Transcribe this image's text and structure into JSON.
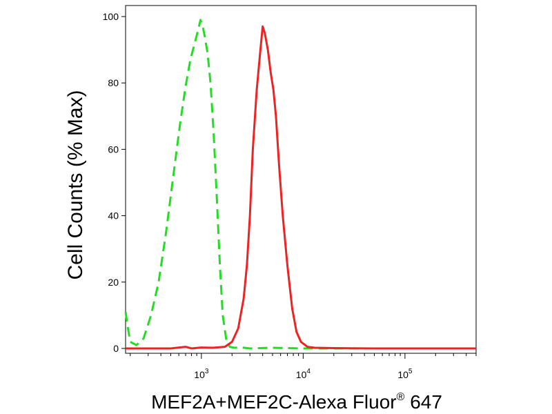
{
  "chart_data": {
    "type": "line",
    "xlabel": "MEF2A+MEF2C-Alexa Fluor",
    "xlabel_superscript": "®",
    "xlabel_suffix": " 647",
    "ylabel": "Cell Counts (% Max)",
    "x_scale": "log",
    "xlim": [
      180,
      500000
    ],
    "ylim": [
      0,
      105
    ],
    "y_ticks": [
      "0",
      "20",
      "40",
      "60",
      "80",
      "100"
    ],
    "y_tick_values": [
      0,
      20,
      40,
      60,
      80,
      100
    ],
    "x_ticks": [
      {
        "value": 1000,
        "base": "10",
        "exp": "3"
      },
      {
        "value": 10000,
        "base": "10",
        "exp": "4"
      },
      {
        "value": 100000,
        "base": "10",
        "exp": "5"
      }
    ],
    "grid": false,
    "legend": "none",
    "series": [
      {
        "color": "#22dd22",
        "style": "dashed",
        "x": [
          180,
          190,
          200,
          230,
          270,
          320,
          380,
          450,
          530,
          620,
          700,
          780,
          860,
          930,
          980,
          1030,
          1080,
          1150,
          1230,
          1320,
          1420,
          1520,
          1620,
          1750,
          1900,
          2100,
          2500,
          3000,
          5000,
          10000,
          50000,
          500000
        ],
        "y": [
          11,
          6,
          2,
          1,
          3,
          10,
          20,
          35,
          52,
          68,
          79,
          87,
          92,
          96,
          99,
          97,
          94,
          89,
          80,
          65,
          45,
          25,
          10,
          3,
          0.5,
          0.2,
          0.3,
          0,
          0.2,
          0,
          0,
          0
        ]
      },
      {
        "color": "#ee2222",
        "style": "solid",
        "x": [
          180,
          500,
          700,
          800,
          1000,
          1300,
          1700,
          2000,
          2300,
          2600,
          2800,
          3000,
          3200,
          3500,
          3800,
          4000,
          4200,
          4500,
          4800,
          5100,
          5400,
          5800,
          6300,
          7000,
          7800,
          8600,
          9500,
          11000,
          13000,
          20000,
          50000,
          500000
        ],
        "y": [
          0,
          0,
          0.5,
          0,
          0.3,
          0.2,
          0.5,
          2,
          6,
          15,
          25,
          40,
          60,
          78,
          90,
          97,
          95,
          90,
          83,
          78,
          70,
          55,
          40,
          25,
          12,
          5,
          2,
          0.5,
          0.2,
          0.1,
          0,
          0
        ]
      }
    ]
  }
}
